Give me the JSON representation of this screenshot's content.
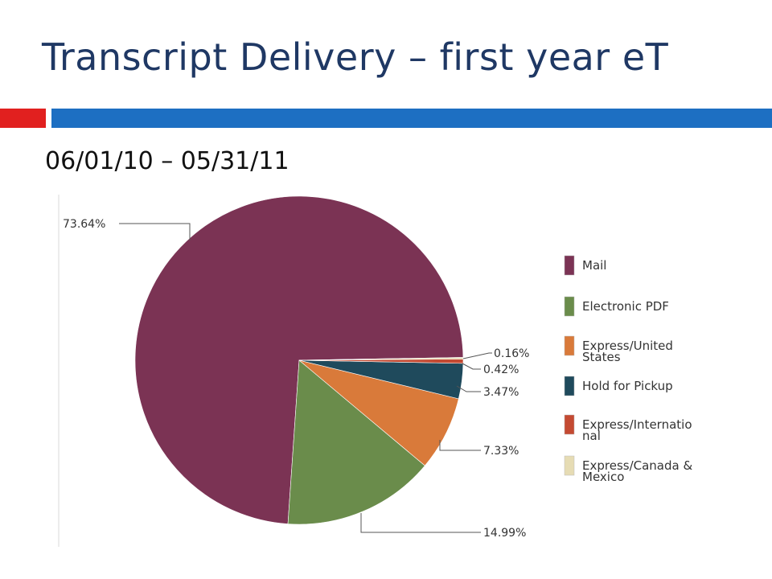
{
  "slide": {
    "title": "Transcript Delivery – first year eT",
    "date_range": "06/01/10 – 05/31/11"
  },
  "colors": {
    "title": "#1f3864",
    "accent_red": "#e1201f",
    "accent_blue": "#1d6fc2"
  },
  "chart_data": {
    "type": "pie",
    "title": "",
    "slices": [
      {
        "name": "Mail",
        "value": 73.64,
        "label": "73.64%",
        "color": "#7b3354"
      },
      {
        "name": "Electronic PDF",
        "value": 14.99,
        "label": "14.99%",
        "color": "#6a8c4b"
      },
      {
        "name": "Express/United States",
        "value": 7.33,
        "label": "7.33%",
        "color": "#d97a3a"
      },
      {
        "name": "Hold for Pickup",
        "value": 3.47,
        "label": "3.47%",
        "color": "#1f4a5c"
      },
      {
        "name": "Express/International",
        "value": 0.42,
        "label": "0.42%",
        "color": "#c44a32"
      },
      {
        "name": "Express/Canada & Mexico",
        "value": 0.16,
        "label": "0.16%",
        "color": "#e6dcb4"
      }
    ],
    "legend": {
      "placement": "right",
      "entries": [
        {
          "lines": [
            "Mail"
          ],
          "color": "#7b3354"
        },
        {
          "lines": [
            "Electronic PDF"
          ],
          "color": "#6a8c4b"
        },
        {
          "lines": [
            "Express/United",
            "States"
          ],
          "color": "#d97a3a"
        },
        {
          "lines": [
            "Hold for Pickup"
          ],
          "color": "#1f4a5c"
        },
        {
          "lines": [
            "Express/Internatio",
            "nal"
          ],
          "color": "#c44a32"
        },
        {
          "lines": [
            "Express/Canada &",
            "Mexico"
          ],
          "color": "#e6dcb4"
        }
      ]
    }
  }
}
